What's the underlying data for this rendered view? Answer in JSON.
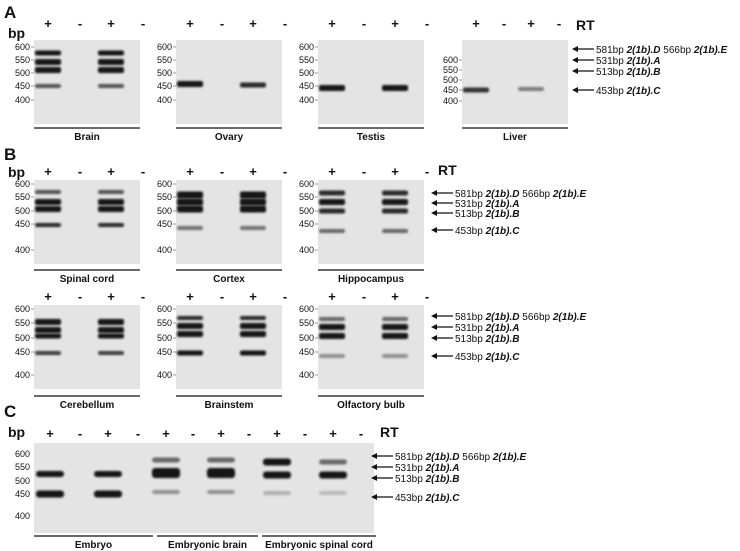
{
  "panels": {
    "a": "A",
    "b": "B",
    "c": "C"
  },
  "header": {
    "bp": "bp",
    "rt": "RT"
  },
  "sign_plus": "+",
  "sign_minus": "-",
  "marker_ticks": [
    "600",
    "550",
    "500",
    "450",
    "400"
  ],
  "gel_captions": {
    "brain": "Brain",
    "ovary": "Ovary",
    "testis": "Testis",
    "liver": "Liver",
    "spinal_cord": "Spinal cord",
    "cortex": "Cortex",
    "hippocampus": "Hippocampus",
    "cerebellum": "Cerebellum",
    "brainstem": "Brainstem",
    "olfactory_bulb": "Olfactory bulb",
    "embryo": "Embryo",
    "embryonic_brain": "Embryonic brain",
    "embryonic_spinal_cord": "Embryonic spinal cord"
  },
  "bands": {
    "d_size": "581bp",
    "d_name": "2(1b).D",
    "e_size": "566bp",
    "e_name": "2(1b).E",
    "a_size": "531bp",
    "a_name": "2(1b).A",
    "b_size": "513bp",
    "b_name": "2(1b).B",
    "c_size": "453bp",
    "c_name": "2(1b).C"
  },
  "colors": {
    "gel": "#e4e4e4",
    "band": "#151515",
    "text": "#111111"
  }
}
